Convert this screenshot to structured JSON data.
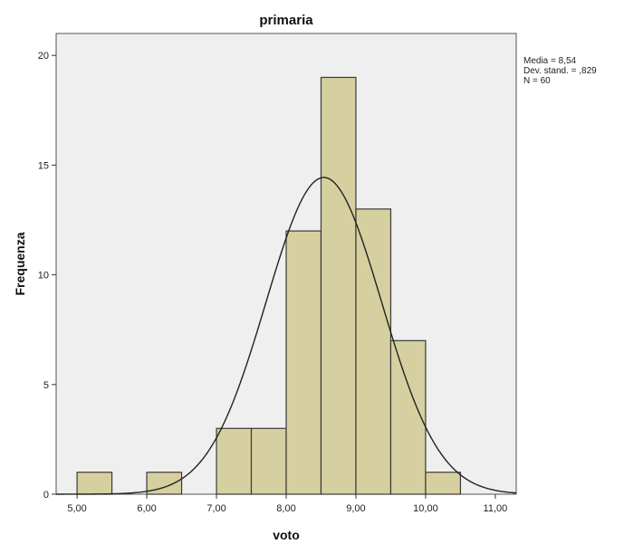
{
  "chart_data": {
    "type": "bar",
    "title": "primaria",
    "xlabel": "voto",
    "ylabel": "Frequenza",
    "bins": [
      {
        "start": 5.0,
        "end": 5.5,
        "count": 1
      },
      {
        "start": 5.5,
        "end": 6.0,
        "count": 0
      },
      {
        "start": 6.0,
        "end": 6.5,
        "count": 1
      },
      {
        "start": 6.5,
        "end": 7.0,
        "count": 0
      },
      {
        "start": 7.0,
        "end": 7.5,
        "count": 3
      },
      {
        "start": 7.5,
        "end": 8.0,
        "count": 3
      },
      {
        "start": 8.0,
        "end": 8.5,
        "count": 12
      },
      {
        "start": 8.5,
        "end": 9.0,
        "count": 19
      },
      {
        "start": 9.0,
        "end": 9.5,
        "count": 13
      },
      {
        "start": 9.5,
        "end": 10.0,
        "count": 7
      },
      {
        "start": 10.0,
        "end": 10.5,
        "count": 1
      }
    ],
    "xlim": [
      4.7,
      11.3
    ],
    "ylim": [
      0,
      21
    ],
    "x_ticks": [
      {
        "value": 5,
        "label": "5,00"
      },
      {
        "value": 6,
        "label": "6,00"
      },
      {
        "value": 7,
        "label": "7,00"
      },
      {
        "value": 8,
        "label": "8,00"
      },
      {
        "value": 9,
        "label": "9,00"
      },
      {
        "value": 10,
        "label": "10,00"
      },
      {
        "value": 11,
        "label": "11,00"
      }
    ],
    "y_ticks": [
      {
        "value": 0,
        "label": "0"
      },
      {
        "value": 5,
        "label": "5"
      },
      {
        "value": 10,
        "label": "10"
      },
      {
        "value": 15,
        "label": "15"
      },
      {
        "value": 20,
        "label": "20"
      }
    ],
    "normal_curve": {
      "mean": 8.54,
      "sd": 0.829,
      "n": 60,
      "bin_width": 0.5
    },
    "stats_lines": [
      "Media = 8,54",
      "Dev. stand. = ,829",
      "N = 60"
    ],
    "grid": false,
    "colors": {
      "bar_fill": "#d6d0a0",
      "bar_stroke": "#3a3a3a",
      "plot_bg": "#efefef",
      "curve": "#222222"
    }
  }
}
